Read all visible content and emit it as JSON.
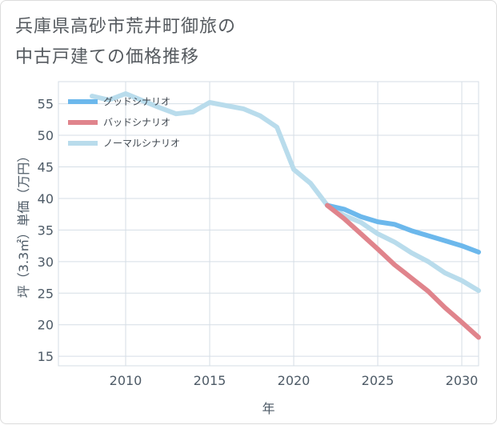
{
  "title": "兵庫県高砂市荒井町御旅の\n中古戸建ての価格推移",
  "colors": {
    "good": "#6cb8ec",
    "bad": "#e0848c",
    "normal": "#b9dcec",
    "grid": "#d5dee6",
    "axis": "#4d5a66"
  },
  "chart_data": {
    "type": "line",
    "title": "兵庫県高砂市荒井町御旅の中古戸建ての価格推移",
    "xlabel": "年",
    "ylabel": "坪（3.3㎡）単価（万円）",
    "xlim": [
      2006,
      2031
    ],
    "ylim": [
      13.5,
      58.5
    ],
    "xticks": [
      2010,
      2015,
      2020,
      2025,
      2030
    ],
    "yticks": [
      15,
      20,
      25,
      30,
      35,
      40,
      45,
      50,
      55
    ],
    "grid": true,
    "legend_position": "top-left",
    "series": [
      {
        "name": "グッドシナリオ",
        "color": "#6cb8ec",
        "x": [
          2022,
          2023,
          2024,
          2025,
          2026,
          2027,
          2028,
          2029,
          2030,
          2031
        ],
        "y": [
          38.9,
          38.3,
          37.1,
          36.3,
          35.9,
          34.9,
          34.1,
          33.3,
          32.5,
          31.5
        ]
      },
      {
        "name": "バッドシナリオ",
        "color": "#e0848c",
        "x": [
          2022,
          2023,
          2024,
          2025,
          2026,
          2027,
          2028,
          2029,
          2030,
          2031
        ],
        "y": [
          38.9,
          36.8,
          34.4,
          32.0,
          29.5,
          27.4,
          25.3,
          22.7,
          20.4,
          18.0
        ]
      },
      {
        "name": "ノーマルシナリオ",
        "color": "#b9dcec",
        "x": [
          2008,
          2009,
          2010,
          2011,
          2012,
          2013,
          2014,
          2015,
          2016,
          2017,
          2018,
          2019,
          2020,
          2021,
          2022,
          2023,
          2024,
          2025,
          2026,
          2027,
          2028,
          2029,
          2030,
          2031
        ],
        "y": [
          56.2,
          55.6,
          56.6,
          55.5,
          54.4,
          53.4,
          53.7,
          55.2,
          54.7,
          54.2,
          53.1,
          51.3,
          44.6,
          42.4,
          38.9,
          37.3,
          36.2,
          34.4,
          33.1,
          31.4,
          30.0,
          28.2,
          27.0,
          25.4
        ]
      }
    ]
  }
}
